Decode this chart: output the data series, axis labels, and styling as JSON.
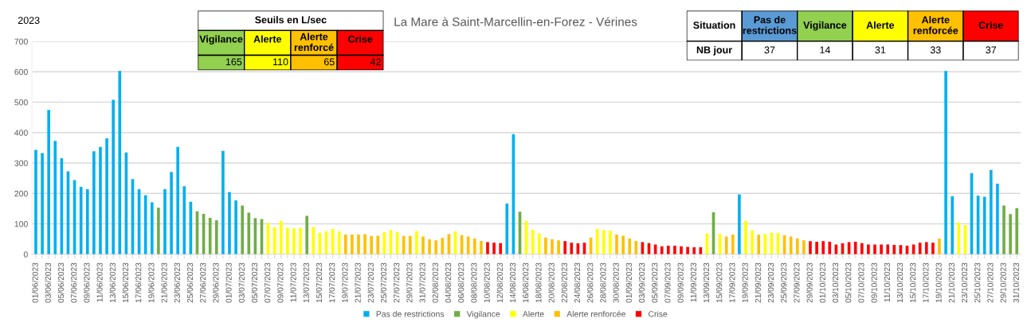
{
  "chart_data": [
    {
      "type": "bar",
      "title": "La Mare à Saint-Marcellin-en-Forez - Vérines",
      "annotations": [
        "2023",
        "Seuils en L/sec",
        "Vigilance",
        "Alerte",
        "Alerte\nrenforcé",
        "Crise",
        "165",
        "110",
        "65",
        "42",
        "Situation",
        "Pas de\nrestrictions",
        "Vigilance",
        "Alerte",
        "Alerte\nrenforcée",
        "Crise",
        "NB jour",
        "37",
        "14",
        "31",
        "33",
        "37"
      ],
      "categories": [
        "01/06/2023",
        null,
        "03/06/2023",
        null,
        "05/06/2023",
        null,
        "07/06/2023",
        null,
        "09/06/2023",
        null,
        "11/06/2023",
        null,
        "13/06/2023",
        null,
        "15/06/2023",
        null,
        "17/06/2023",
        null,
        "19/06/2023",
        null,
        "21/06/2023",
        null,
        "23/06/2023",
        null,
        "25/06/2023",
        null,
        "27/06/2023",
        null,
        "29/06/2023",
        null,
        "01/07/2023",
        null,
        "03/07/2023",
        null,
        "05/07/2023",
        null,
        "07/07/2023",
        null,
        "09/07/2023",
        null,
        "11/07/2023",
        null,
        "13/07/2023",
        null,
        "15/07/2023",
        null,
        "17/07/2023",
        null,
        "19/07/2023",
        null,
        "21/07/2023",
        null,
        "23/07/2023",
        null,
        "25/07/2023",
        null,
        "27/07/2023",
        null,
        "29/07/2023",
        null,
        "31/07/2023",
        null,
        "02/08/2023",
        null,
        "04/08/2023",
        null,
        "06/08/2023",
        null,
        "08/08/2023",
        null,
        "10/08/2023",
        null,
        "12/08/2023",
        null,
        "14/08/2023",
        null,
        "16/08/2023",
        null,
        "18/08/2023",
        null,
        "20/08/2023",
        null,
        "22/08/2023",
        null,
        "24/08/2023",
        null,
        "26/08/2023",
        null,
        "28/08/2023",
        null,
        "30/08/2023",
        null,
        "01/09/2023",
        null,
        "03/09/2023",
        null,
        "05/09/2023",
        null,
        "07/09/2023",
        null,
        "09/09/2023",
        null,
        "11/09/2023",
        null,
        "13/09/2023",
        null,
        "15/09/2023",
        null,
        "17/09/2023",
        null,
        "19/09/2023",
        null,
        "21/09/2023",
        null,
        "23/09/2023",
        null,
        "25/09/2023",
        null,
        "27/09/2023",
        null,
        "29/09/2023",
        null,
        "01/10/2023",
        null,
        "03/10/2023",
        null,
        "05/10/2023",
        null,
        "07/10/2023",
        null,
        "09/10/2023",
        null,
        "11/10/2023",
        null,
        "13/10/2023",
        null,
        "15/10/2023",
        null,
        "17/10/2023",
        null,
        "19/10/2023",
        null,
        "21/10/2023",
        null,
        "23/10/2023",
        null,
        "25/10/2023",
        null,
        "27/10/2023",
        null,
        "29/10/2023",
        null,
        "31/10/2023"
      ],
      "series": [
        {
          "name": "Pas de restrictions",
          "color": "#00b0f0",
          "values": [
            343,
            333,
            475,
            373,
            316,
            273,
            244,
            222,
            214,
            339,
            353,
            381,
            508,
            603,
            335,
            247,
            214,
            194,
            171,
            null,
            214,
            271,
            353,
            224,
            173,
            null,
            null,
            null,
            null,
            340,
            205,
            177,
            null,
            null,
            null,
            null,
            null,
            null,
            null,
            null,
            null,
            null,
            null,
            null,
            null,
            null,
            null,
            null,
            null,
            null,
            null,
            null,
            null,
            null,
            null,
            null,
            null,
            null,
            null,
            null,
            null,
            null,
            null,
            null,
            null,
            null,
            null,
            null,
            null,
            null,
            null,
            null,
            null,
            167,
            395,
            null,
            null,
            null,
            null,
            null,
            null,
            null,
            null,
            null,
            null,
            null,
            null,
            null,
            null,
            null,
            null,
            null,
            null,
            null,
            null,
            null,
            null,
            null,
            null,
            null,
            null,
            null,
            null,
            null,
            null,
            null,
            null,
            null,
            null,
            197,
            null,
            null,
            null,
            null,
            null,
            null,
            null,
            null,
            null,
            null,
            null,
            null,
            null,
            null,
            null,
            null,
            null,
            null,
            null,
            null,
            null,
            null,
            null,
            null,
            null,
            null,
            null,
            null,
            null,
            null,
            null,
            603,
            191,
            null,
            null,
            267,
            193,
            189,
            277,
            232,
            null,
            null,
            null
          ]
        },
        {
          "name": "Vigilance",
          "color": "#70ad47",
          "values": [
            null,
            null,
            null,
            null,
            null,
            null,
            null,
            null,
            null,
            null,
            null,
            null,
            null,
            null,
            null,
            null,
            null,
            null,
            null,
            153,
            null,
            null,
            null,
            null,
            null,
            141,
            133,
            120,
            112,
            null,
            null,
            null,
            160,
            137,
            119,
            116,
            null,
            null,
            null,
            null,
            null,
            null,
            126,
            null,
            null,
            null,
            null,
            null,
            null,
            null,
            null,
            null,
            null,
            null,
            null,
            null,
            null,
            null,
            null,
            null,
            null,
            null,
            null,
            null,
            null,
            null,
            null,
            null,
            null,
            null,
            null,
            null,
            null,
            null,
            null,
            140,
            null,
            null,
            null,
            null,
            null,
            null,
            null,
            null,
            null,
            null,
            null,
            null,
            null,
            null,
            null,
            null,
            null,
            null,
            null,
            null,
            null,
            null,
            null,
            null,
            null,
            null,
            null,
            null,
            null,
            138,
            null,
            null,
            null,
            null,
            null,
            null,
            null,
            null,
            null,
            null,
            null,
            null,
            null,
            null,
            null,
            null,
            null,
            null,
            null,
            null,
            null,
            null,
            null,
            null,
            null,
            null,
            null,
            null,
            null,
            null,
            null,
            null,
            null,
            null,
            null,
            null,
            null,
            null,
            null,
            null,
            null,
            null,
            null,
            null,
            160,
            132,
            152
          ]
        },
        {
          "name": "Alerte",
          "color": "#ffff00",
          "values": [
            null,
            null,
            null,
            null,
            null,
            null,
            null,
            null,
            null,
            null,
            null,
            null,
            null,
            null,
            null,
            null,
            null,
            null,
            null,
            null,
            null,
            null,
            null,
            null,
            null,
            null,
            null,
            null,
            null,
            null,
            null,
            null,
            null,
            null,
            null,
            null,
            103,
            89,
            110,
            87,
            85,
            87,
            null,
            90,
            71,
            76,
            83,
            75,
            null,
            null,
            null,
            null,
            null,
            null,
            73,
            80,
            73,
            null,
            null,
            76,
            null,
            null,
            null,
            null,
            null,
            75,
            null,
            null,
            null,
            null,
            null,
            null,
            null,
            null,
            null,
            null,
            110,
            81,
            69,
            null,
            null,
            null,
            null,
            null,
            null,
            null,
            null,
            84,
            79,
            78,
            null,
            null,
            null,
            null,
            null,
            null,
            null,
            null,
            null,
            null,
            null,
            null,
            null,
            null,
            69,
            null,
            67,
            null,
            null,
            null,
            110,
            78,
            null,
            67,
            71,
            70,
            null,
            null,
            null,
            null,
            null,
            null,
            null,
            null,
            null,
            null,
            null,
            null,
            null,
            null,
            null,
            null,
            null,
            null,
            null,
            null,
            null,
            null,
            null,
            null,
            null,
            null,
            null,
            105,
            96,
            null,
            null,
            null,
            null,
            null,
            null,
            null,
            null
          ]
        },
        {
          "name": "Alerte renforcée",
          "color": "#ffc000",
          "values": [
            null,
            null,
            null,
            null,
            null,
            null,
            null,
            null,
            null,
            null,
            null,
            null,
            null,
            null,
            null,
            null,
            null,
            null,
            null,
            null,
            null,
            null,
            null,
            null,
            null,
            null,
            null,
            null,
            null,
            null,
            null,
            null,
            null,
            null,
            null,
            null,
            null,
            null,
            null,
            null,
            null,
            null,
            null,
            null,
            null,
            null,
            null,
            null,
            65,
            65,
            65,
            66,
            60,
            61,
            null,
            null,
            null,
            60,
            60,
            null,
            58,
            49,
            46,
            54,
            66,
            null,
            63,
            58,
            52,
            44,
            null,
            null,
            null,
            null,
            null,
            null,
            null,
            null,
            null,
            55,
            49,
            46,
            null,
            null,
            null,
            null,
            55,
            null,
            null,
            null,
            65,
            61,
            52,
            44,
            null,
            null,
            null,
            null,
            null,
            null,
            null,
            null,
            null,
            null,
            null,
            null,
            null,
            58,
            65,
            null,
            null,
            null,
            64,
            null,
            null,
            null,
            63,
            58,
            52,
            46,
            null,
            null,
            null,
            null,
            null,
            null,
            null,
            null,
            null,
            null,
            null,
            null,
            null,
            null,
            null,
            null,
            null,
            null,
            null,
            null,
            52,
            null,
            null,
            null,
            null,
            null,
            null,
            null,
            null,
            null,
            null,
            null,
            null
          ]
        },
        {
          "name": "Crise",
          "color": "#ff0000",
          "values": [
            null,
            null,
            null,
            null,
            null,
            null,
            null,
            null,
            null,
            null,
            null,
            null,
            null,
            null,
            null,
            null,
            null,
            null,
            null,
            null,
            null,
            null,
            null,
            null,
            null,
            null,
            null,
            null,
            null,
            null,
            null,
            null,
            null,
            null,
            null,
            null,
            null,
            null,
            null,
            null,
            null,
            null,
            null,
            null,
            null,
            null,
            null,
            null,
            null,
            null,
            null,
            null,
            null,
            null,
            null,
            null,
            null,
            null,
            null,
            null,
            null,
            null,
            null,
            null,
            null,
            null,
            null,
            null,
            null,
            null,
            40,
            38,
            37,
            null,
            null,
            null,
            null,
            null,
            null,
            null,
            null,
            null,
            43,
            38,
            36,
            38,
            null,
            null,
            null,
            null,
            null,
            null,
            null,
            null,
            40,
            37,
            32,
            26,
            28,
            28,
            26,
            24,
            23,
            23,
            null,
            null,
            null,
            null,
            null,
            null,
            null,
            null,
            null,
            null,
            null,
            null,
            null,
            null,
            null,
            null,
            43,
            41,
            43,
            41,
            32,
            36,
            40,
            41,
            37,
            32,
            32,
            32,
            32,
            31,
            30,
            28,
            32,
            38,
            40,
            38,
            null,
            null,
            null,
            null,
            null,
            null,
            null,
            null,
            null,
            null,
            null,
            null,
            null
          ]
        }
      ],
      "ylim": [
        0,
        700
      ],
      "yticks": [
        0,
        100,
        200,
        300,
        400,
        500,
        600,
        700
      ],
      "grid": "y",
      "legend": "bottom"
    }
  ]
}
